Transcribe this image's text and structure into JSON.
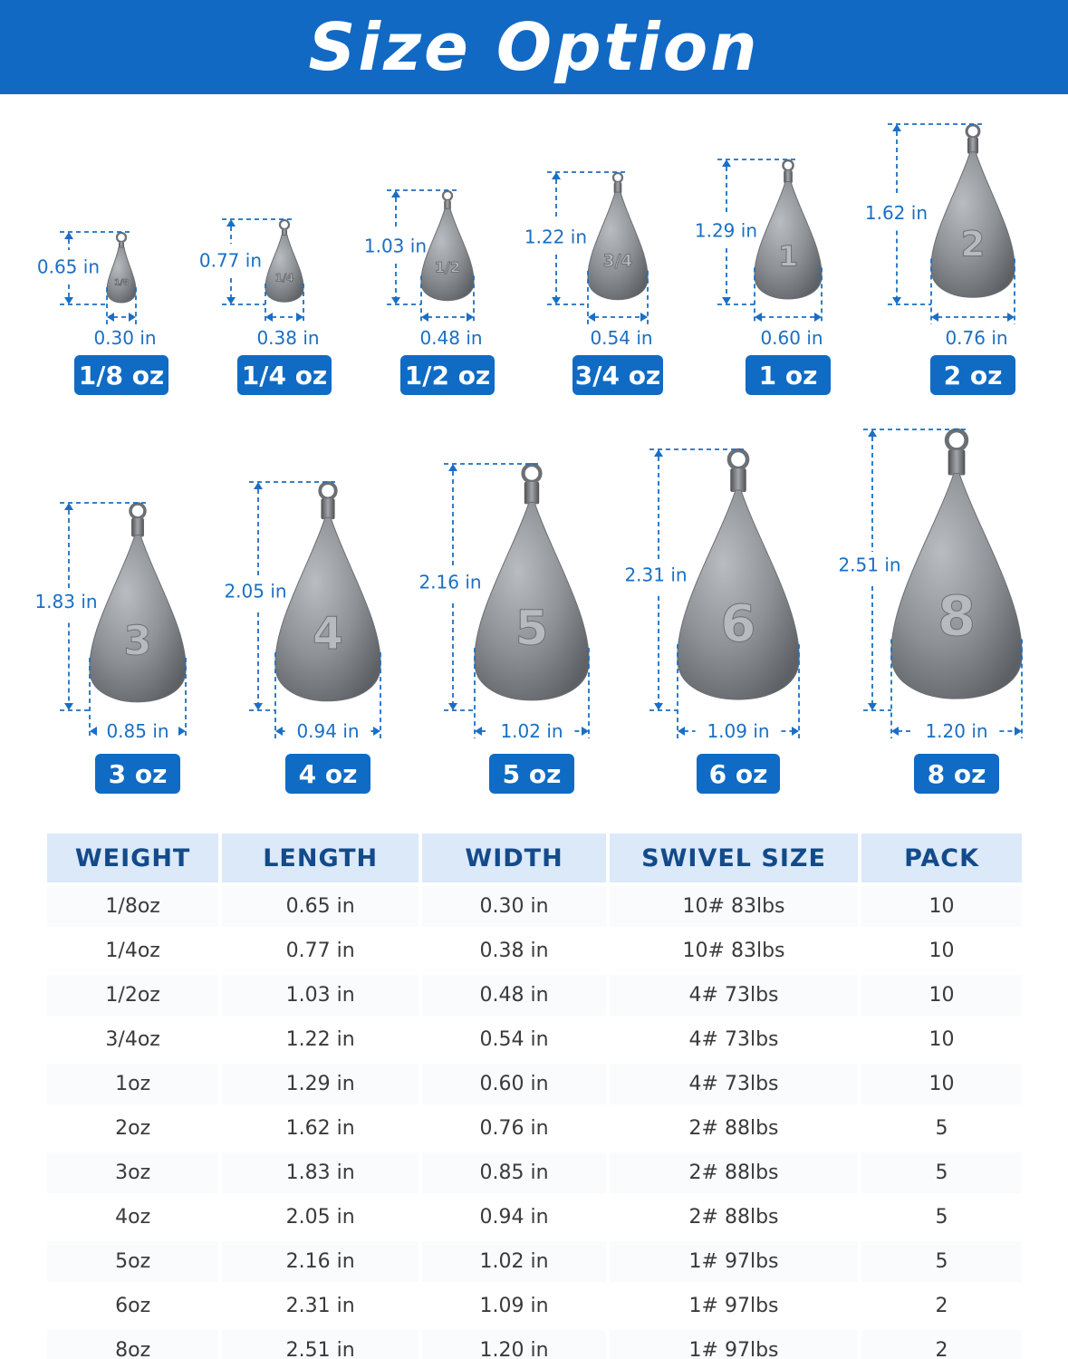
{
  "banner": {
    "title": "Size Option"
  },
  "colors": {
    "brand": "#1169c4",
    "dimension": "#1a6fc4",
    "header_bg": "#dbe9f8",
    "header_text": "#134a8a"
  },
  "sinkers": [
    {
      "weight": "1/8 oz",
      "length": "0.65 in",
      "width": "0.30 in",
      "mark": "1/8"
    },
    {
      "weight": "1/4 oz",
      "length": "0.77 in",
      "width": "0.38 in",
      "mark": "1/4"
    },
    {
      "weight": "1/2 oz",
      "length": "1.03 in",
      "width": "0.48 in",
      "mark": "1/2"
    },
    {
      "weight": "3/4 oz",
      "length": "1.22 in",
      "width": "0.54 in",
      "mark": "3/4"
    },
    {
      "weight": "1 oz",
      "length": "1.29 in",
      "width": "0.60 in",
      "mark": "1"
    },
    {
      "weight": "2 oz",
      "length": "1.62 in",
      "width": "0.76 in",
      "mark": "2"
    },
    {
      "weight": "3 oz",
      "length": "1.83 in",
      "width": "0.85 in",
      "mark": "3"
    },
    {
      "weight": "4 oz",
      "length": "2.05 in",
      "width": "0.94 in",
      "mark": "4"
    },
    {
      "weight": "5 oz",
      "length": "2.16 in",
      "width": "1.02 in",
      "mark": "5"
    },
    {
      "weight": "6 oz",
      "length": "2.31 in",
      "width": "1.09 in",
      "mark": "6"
    },
    {
      "weight": "8 oz",
      "length": "2.51 in",
      "width": "1.20 in",
      "mark": "8"
    }
  ],
  "table": {
    "headers": [
      "WEIGHT",
      "LENGTH",
      "WIDTH",
      "SWIVEL SIZE",
      "PACK"
    ],
    "rows": [
      [
        "1/8oz",
        "0.65 in",
        "0.30 in",
        "10# 83lbs",
        "10"
      ],
      [
        "1/4oz",
        "0.77 in",
        "0.38 in",
        "10# 83lbs",
        "10"
      ],
      [
        "1/2oz",
        "1.03 in",
        "0.48 in",
        "4# 73lbs",
        "10"
      ],
      [
        "3/4oz",
        "1.22 in",
        "0.54 in",
        "4# 73lbs",
        "10"
      ],
      [
        "1oz",
        "1.29 in",
        "0.60 in",
        "4# 73lbs",
        "10"
      ],
      [
        "2oz",
        "1.62 in",
        "0.76 in",
        "2# 88lbs",
        "5"
      ],
      [
        "3oz",
        "1.83 in",
        "0.85 in",
        "2# 88lbs",
        "5"
      ],
      [
        "4oz",
        "2.05 in",
        "0.94 in",
        "2# 88lbs",
        "5"
      ],
      [
        "5oz",
        "2.16 in",
        "1.02 in",
        "1# 97lbs",
        "5"
      ],
      [
        "6oz",
        "2.31 in",
        "1.09 in",
        "1# 97lbs",
        "2"
      ],
      [
        "8oz",
        "2.51 in",
        "1.20 in",
        "1# 97lbs",
        "2"
      ]
    ]
  }
}
